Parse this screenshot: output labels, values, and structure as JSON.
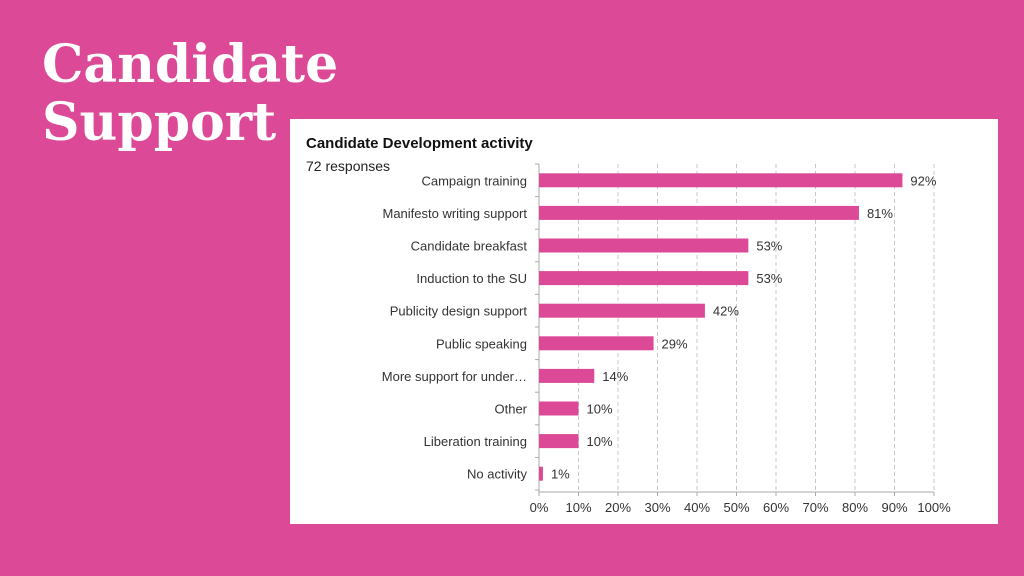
{
  "slide": {
    "title_line1": "Candidate",
    "title_line2": "Support"
  },
  "colors": {
    "background": "#dc4996",
    "bar": "#dc4996",
    "card": "#ffffff"
  },
  "chart_data": {
    "type": "bar",
    "orientation": "horizontal",
    "title": "Candidate Development activity",
    "subtitle": "72 responses",
    "categories": [
      "Campaign training",
      "Manifesto writing support",
      "Candidate breakfast",
      "Induction to the SU",
      "Publicity design support",
      "Public speaking",
      "More support for under…",
      "Other",
      "Liberation training",
      "No activity"
    ],
    "values": [
      92,
      81,
      53,
      53,
      42,
      29,
      14,
      10,
      10,
      1
    ],
    "value_labels": [
      "92%",
      "81%",
      "53%",
      "53%",
      "42%",
      "29%",
      "14%",
      "10%",
      "10%",
      "1%"
    ],
    "xlim": [
      0,
      100
    ],
    "x_ticks": [
      "0%",
      "10%",
      "20%",
      "30%",
      "40%",
      "50%",
      "60%",
      "70%",
      "80%",
      "90%",
      "100%"
    ],
    "grid": "vertical dashed",
    "legend": "none"
  }
}
